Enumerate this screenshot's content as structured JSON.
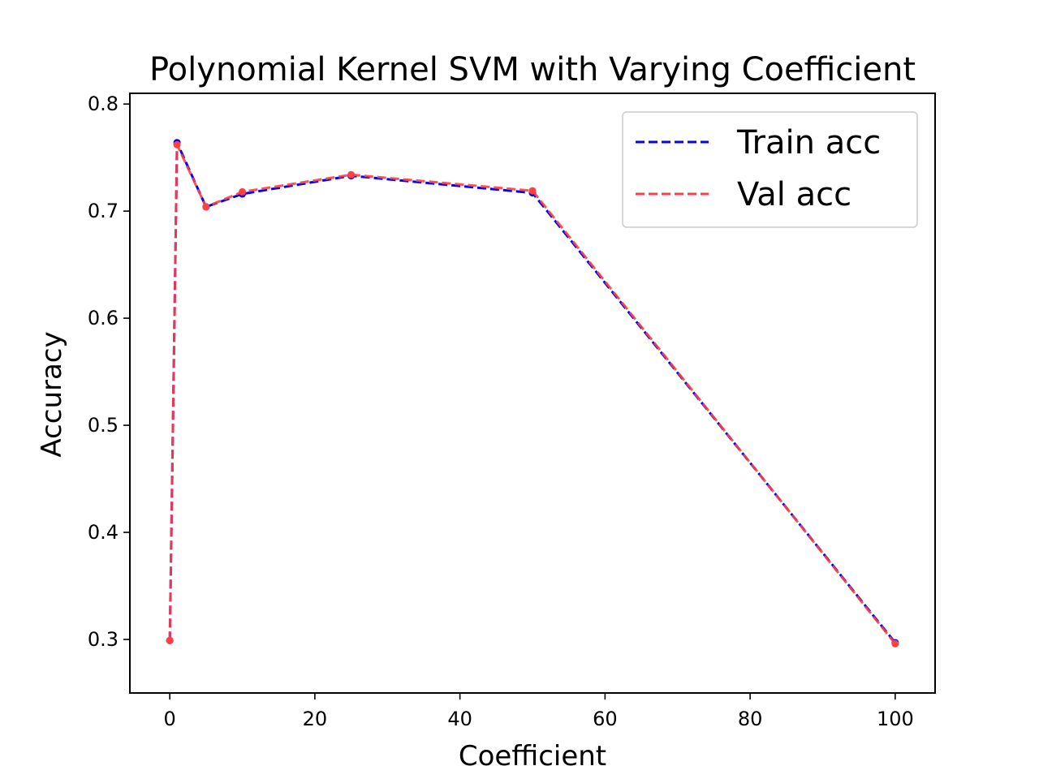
{
  "chart_data": {
    "type": "line",
    "title": "Polynomial Kernel SVM with Varying Coefficient",
    "xlabel": "Coefficient",
    "ylabel": "Accuracy",
    "xlim": [
      -5.5,
      105.5
    ],
    "ylim": [
      0.25,
      0.81
    ],
    "xticks": [
      0,
      20,
      40,
      60,
      80,
      100
    ],
    "yticks": [
      0.3,
      0.4,
      0.5,
      0.6,
      0.7,
      0.8
    ],
    "grid": false,
    "legend_position": "top-right",
    "x": [
      0,
      1,
      5,
      10,
      25,
      50,
      100
    ],
    "series": [
      {
        "name": "Train acc",
        "color": "#0000ff",
        "linestyle": "dashed",
        "values": [
          0.299,
          0.764,
          0.704,
          0.716,
          0.733,
          0.717,
          0.297
        ]
      },
      {
        "name": "Val acc",
        "color": "#ff4040",
        "linestyle": "dashed",
        "values": [
          0.299,
          0.762,
          0.704,
          0.718,
          0.734,
          0.719,
          0.296
        ]
      }
    ]
  }
}
